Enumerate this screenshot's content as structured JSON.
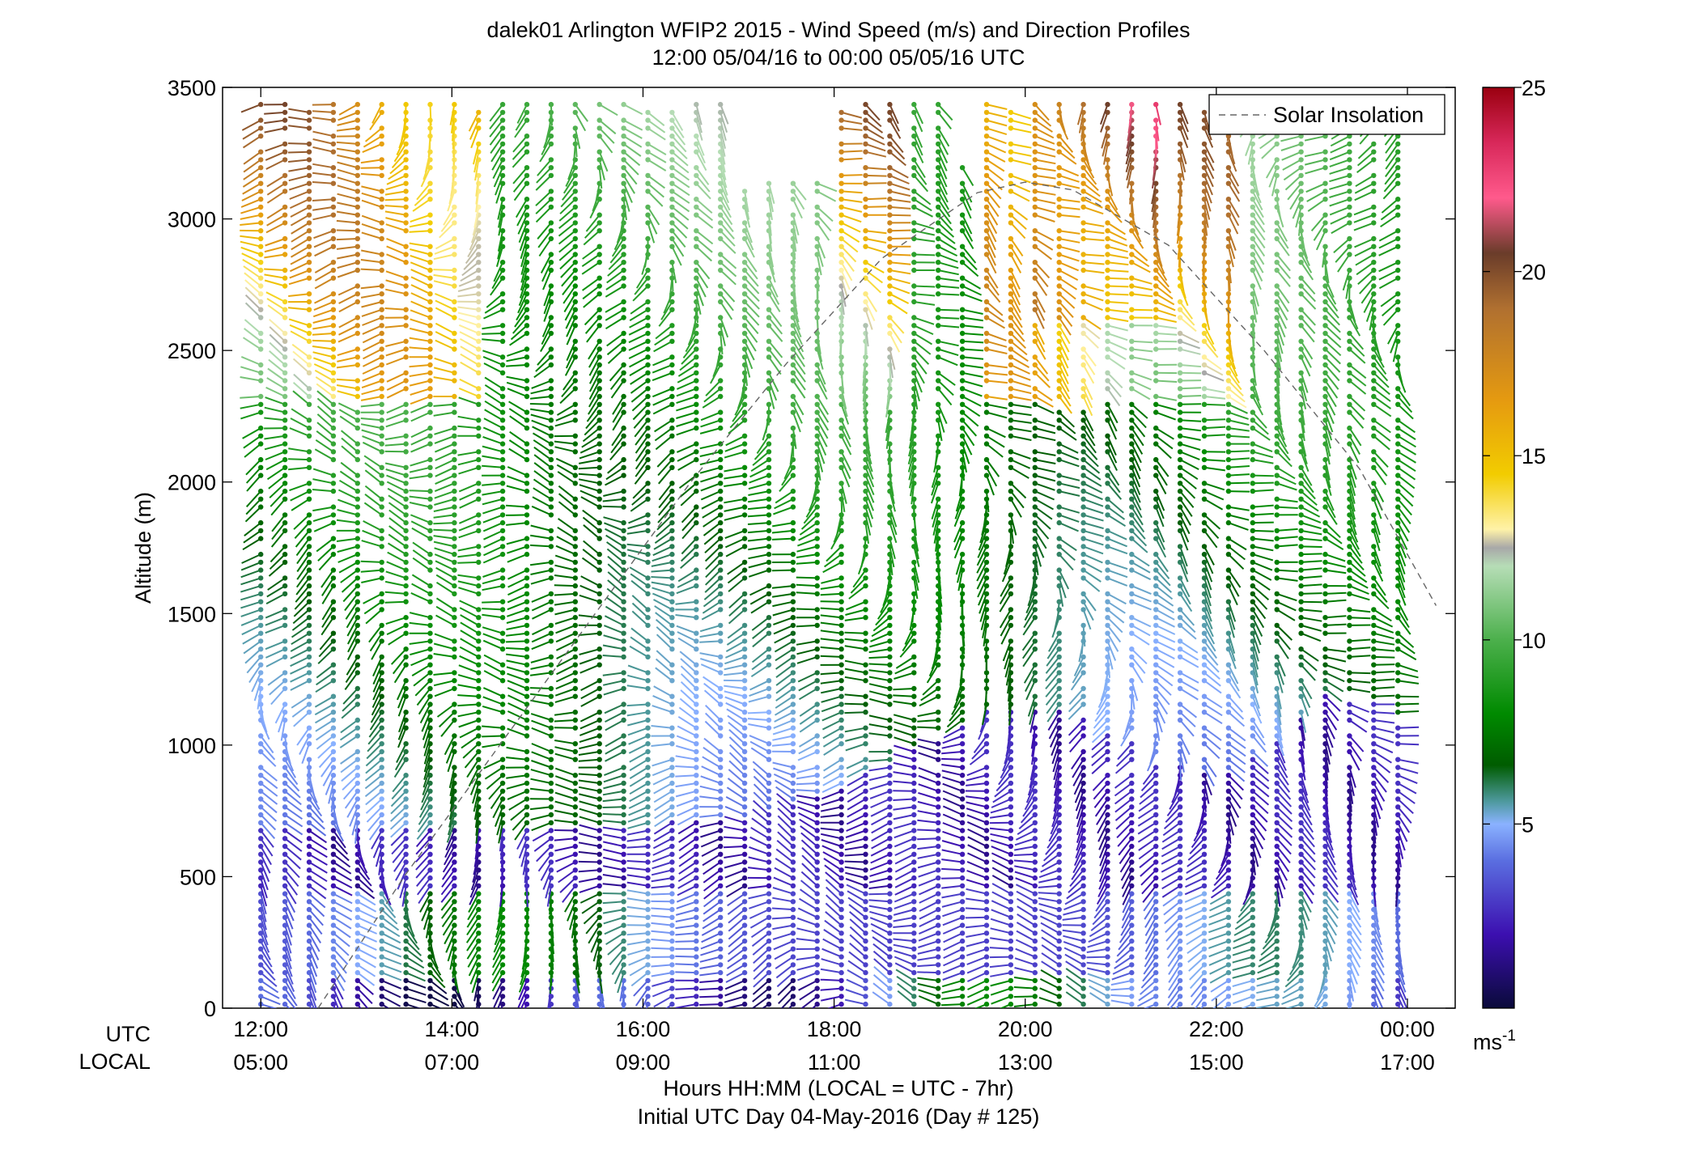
{
  "chart_data": {
    "type": "wind-barb-profile",
    "title": "dalek01 Arlington WFIP2 2015 - Wind Speed (m/s) and Direction Profiles",
    "subtitle": "12:00 05/04/16 to 00:00 05/05/16  UTC",
    "ylabel": "Altitude (m)",
    "xlabel": "Hours HH:MM  (LOCAL = UTC - 7hr)",
    "xlabel2": "Initial UTC Day 04-May-2016 (Day # 125)",
    "row_label_utc": "UTC",
    "row_label_local": "LOCAL",
    "xlim_hours": [
      11.6,
      24.5
    ],
    "ylim": [
      0,
      3500
    ],
    "y_ticks": [
      0,
      500,
      1000,
      1500,
      2000,
      2500,
      3000,
      3500
    ],
    "x_ticks": [
      {
        "hour": 12,
        "utc": "12:00",
        "local": "05:00"
      },
      {
        "hour": 14,
        "utc": "14:00",
        "local": "07:00"
      },
      {
        "hour": 16,
        "utc": "16:00",
        "local": "09:00"
      },
      {
        "hour": 18,
        "utc": "18:00",
        "local": "11:00"
      },
      {
        "hour": 20,
        "utc": "20:00",
        "local": "13:00"
      },
      {
        "hour": 22,
        "utc": "22:00",
        "local": "15:00"
      },
      {
        "hour": 24,
        "utc": "00:00",
        "local": "17:00"
      }
    ],
    "legend": {
      "entry": "Solar Insolation",
      "placement": "top-right",
      "style": "dashed",
      "color": "#7a7a7a"
    },
    "colorbar": {
      "range": [
        0,
        25
      ],
      "ticks": [
        5,
        10,
        15,
        20,
        25
      ],
      "unit": "ms",
      "unit_exponent": "-1",
      "stops": [
        {
          "v": 0,
          "c": "#0a0a3a"
        },
        {
          "v": 2,
          "c": "#3c0fb0"
        },
        {
          "v": 4,
          "c": "#5a6ee0"
        },
        {
          "v": 5,
          "c": "#8ab2ff"
        },
        {
          "v": 5.6,
          "c": "#4f9aa0"
        },
        {
          "v": 6.6,
          "c": "#005c00"
        },
        {
          "v": 8,
          "c": "#008a00"
        },
        {
          "v": 10,
          "c": "#4cb04c"
        },
        {
          "v": 12,
          "c": "#b6ddb6"
        },
        {
          "v": 12.5,
          "c": "#a8a8a8"
        },
        {
          "v": 13,
          "c": "#fff2a8"
        },
        {
          "v": 14.5,
          "c": "#f2cc00"
        },
        {
          "v": 16.5,
          "c": "#e59a10"
        },
        {
          "v": 19,
          "c": "#b07030"
        },
        {
          "v": 20.5,
          "c": "#6a3c2a"
        },
        {
          "v": 22,
          "c": "#ff5a8c"
        },
        {
          "v": 23.5,
          "c": "#d8285a"
        },
        {
          "v": 25,
          "c": "#9a0010"
        }
      ]
    },
    "profile_times_hours_range": [
      12,
      23.9
    ],
    "profile_count": 48,
    "level_spacing_m": 30,
    "solar_insolation_curve": {
      "hours": [
        12.6,
        13.5,
        14.5,
        15.5,
        16.5,
        17.5,
        18.5,
        19.5,
        20.0,
        20.5,
        21.5,
        22.5,
        23.5,
        24.3
      ],
      "altitude": [
        0,
        500,
        1000,
        1500,
        2000,
        2450,
        2850,
        3100,
        3140,
        3110,
        2900,
        2500,
        2050,
        1530
      ]
    }
  }
}
